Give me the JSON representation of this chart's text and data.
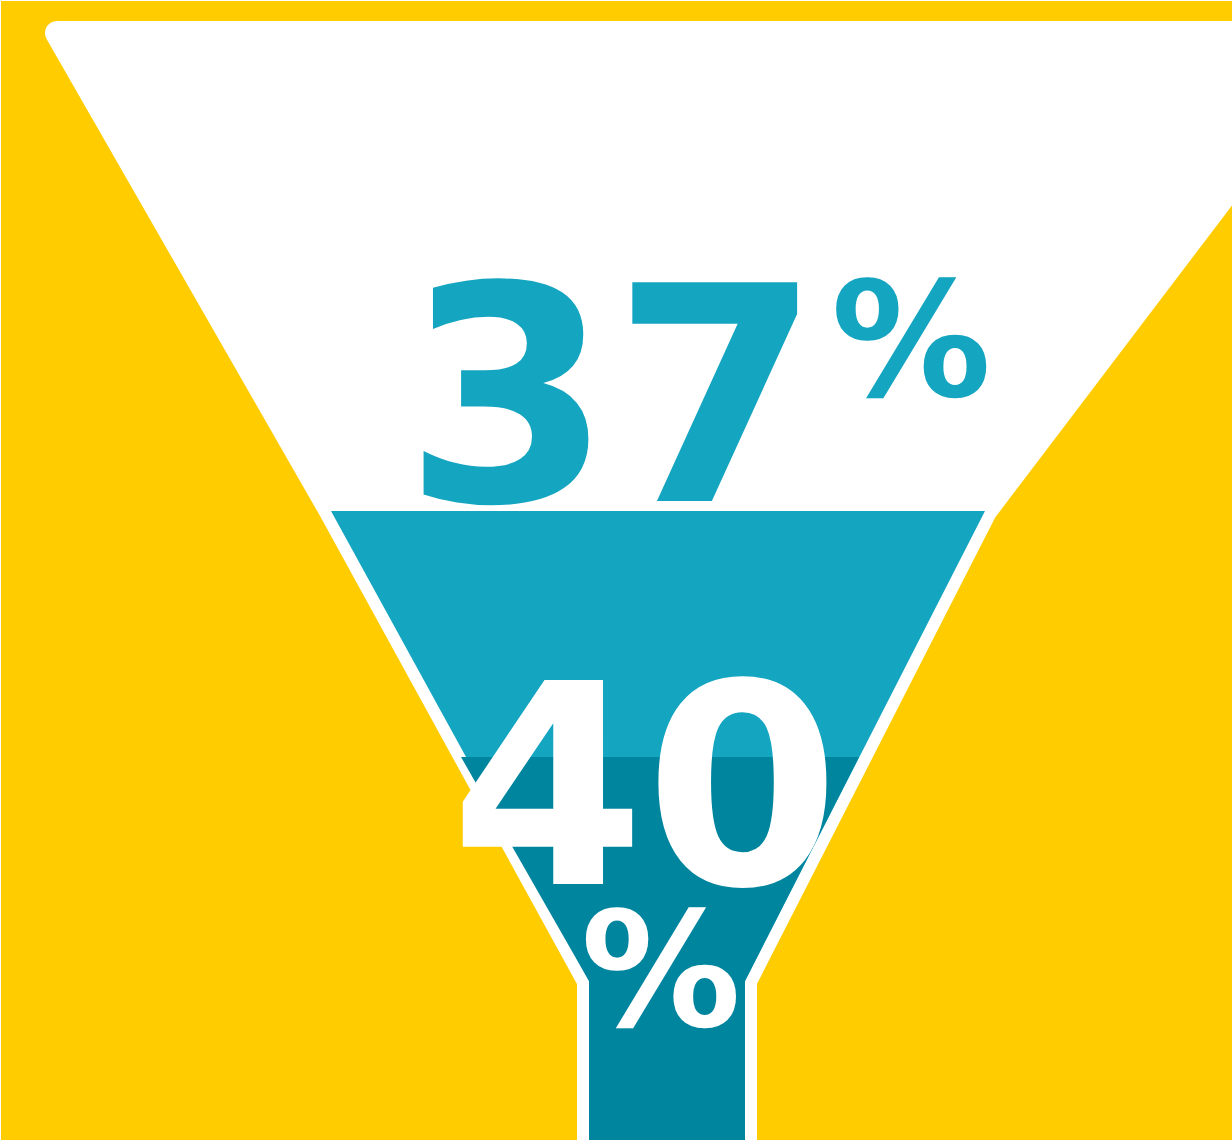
{
  "chart_data": {
    "type": "other",
    "values": [
      37,
      40
    ],
    "value_labels": [
      "37%",
      "40%"
    ],
    "colors": [
      "#ffffff",
      "#14a5c0"
    ]
  }
}
